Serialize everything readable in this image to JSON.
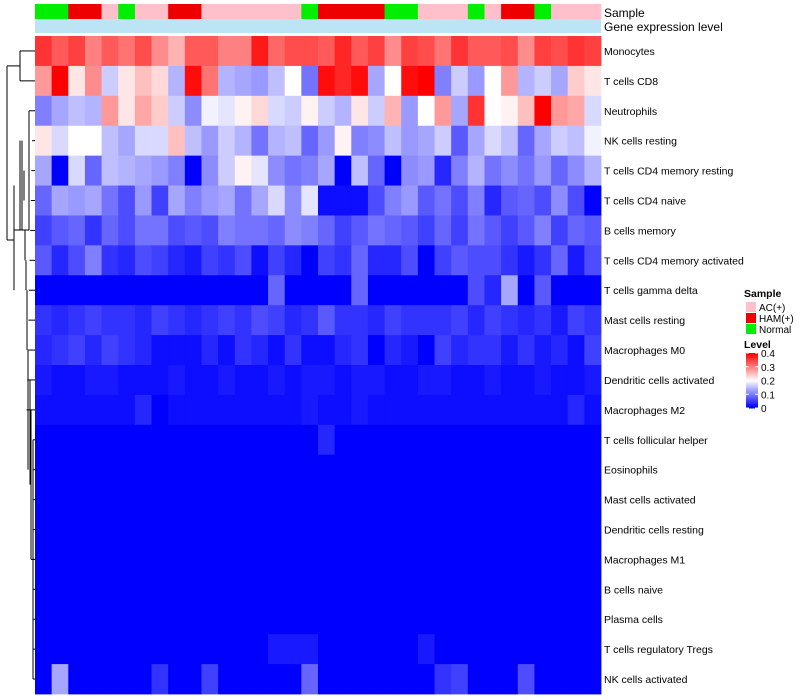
{
  "chart_data": {
    "type": "heatmap",
    "annotation_labels": {
      "sample": "Sample",
      "gene": "Gene expression level"
    },
    "rows": [
      "Monocytes",
      "T cells CD8",
      "Neutrophils",
      "NK cells resting",
      "T cells CD4 memory resting",
      "T cells CD4 naive",
      "B cells memory",
      "T cells CD4 memory activated",
      "T cells gamma delta",
      "Mast cells resting",
      "Macrophages M0",
      "Dendritic cells activated",
      "Macrophages M2",
      "T cells follicular helper",
      "Eosinophils",
      "Mast cells activated",
      "Dendritic cells resting",
      "Macrophages M1",
      "B cells naive",
      "Plasma cells",
      "T cells regulatory  Tregs",
      "NK cells activated"
    ],
    "sample_groups": [
      "Normal",
      "Normal",
      "HAM(+)",
      "HAM(+)",
      "AC(+)",
      "Normal",
      "AC(+)",
      "AC(+)",
      "HAM(+)",
      "HAM(+)",
      "AC(+)",
      "AC(+)",
      "AC(+)",
      "AC(+)",
      "AC(+)",
      "AC(+)",
      "Normal",
      "HAM(+)",
      "HAM(+)",
      "HAM(+)",
      "HAM(+)",
      "Normal",
      "Normal",
      "AC(+)",
      "AC(+)",
      "AC(+)",
      "Normal",
      "AC(+)",
      "HAM(+)",
      "HAM(+)",
      "Normal",
      "AC(+)",
      "AC(+)",
      "AC(+)"
    ],
    "matrix": [
      [
        0.36,
        0.33,
        0.35,
        0.3,
        0.33,
        0.31,
        0.34,
        0.29,
        0.26,
        0.33,
        0.33,
        0.3,
        0.3,
        0.38,
        0.32,
        0.34,
        0.34,
        0.33,
        0.37,
        0.33,
        0.35,
        0.29,
        0.35,
        0.34,
        0.31,
        0.36,
        0.33,
        0.33,
        0.34,
        0.29,
        0.35,
        0.34,
        0.36,
        0.35
      ],
      [
        0.28,
        0.4,
        0.22,
        0.29,
        0.16,
        0.22,
        0.25,
        0.23,
        0.14,
        0.39,
        0.31,
        0.14,
        0.13,
        0.12,
        0.15,
        0.2,
        0.09,
        0.39,
        0.37,
        0.39,
        0.13,
        0.2,
        0.39,
        0.4,
        0.1,
        0.16,
        0.12,
        0.2,
        0.28,
        0.14,
        0.16,
        0.13,
        0.24,
        0.22
      ],
      [
        0.1,
        0.13,
        0.15,
        0.14,
        0.28,
        0.22,
        0.27,
        0.24,
        0.16,
        0.11,
        0.19,
        0.18,
        0.21,
        0.23,
        0.17,
        0.16,
        0.21,
        0.16,
        0.14,
        0.22,
        0.16,
        0.26,
        0.12,
        0.2,
        0.28,
        0.13,
        0.36,
        0.2,
        0.21,
        0.25,
        0.4,
        0.28,
        0.27,
        0.17
      ],
      [
        0.22,
        0.17,
        0.2,
        0.2,
        0.15,
        0.13,
        0.17,
        0.17,
        0.25,
        0.15,
        0.12,
        0.16,
        0.14,
        0.09,
        0.14,
        0.15,
        0.08,
        0.12,
        0.21,
        0.1,
        0.11,
        0.15,
        0.12,
        0.13,
        0.16,
        0.07,
        0.13,
        0.17,
        0.15,
        0.08,
        0.13,
        0.16,
        0.15,
        0.19
      ],
      [
        0.13,
        0.0,
        0.17,
        0.08,
        0.15,
        0.14,
        0.13,
        0.12,
        0.1,
        0.0,
        0.11,
        0.16,
        0.21,
        0.18,
        0.11,
        0.09,
        0.1,
        0.13,
        0.0,
        0.15,
        0.08,
        0.0,
        0.11,
        0.12,
        0.03,
        0.1,
        0.14,
        0.09,
        0.11,
        0.09,
        0.12,
        0.08,
        0.11,
        0.14
      ],
      [
        0.08,
        0.13,
        0.12,
        0.13,
        0.09,
        0.06,
        0.12,
        0.05,
        0.13,
        0.1,
        0.12,
        0.13,
        0.09,
        0.13,
        0.17,
        0.11,
        0.18,
        0.01,
        0.01,
        0.01,
        0.06,
        0.1,
        0.12,
        0.07,
        0.09,
        0.06,
        0.1,
        0.03,
        0.07,
        0.08,
        0.06,
        0.11,
        0.06,
        0.0
      ],
      [
        0.05,
        0.07,
        0.08,
        0.04,
        0.08,
        0.06,
        0.09,
        0.09,
        0.06,
        0.07,
        0.06,
        0.1,
        0.09,
        0.09,
        0.08,
        0.11,
        0.1,
        0.08,
        0.05,
        0.07,
        0.09,
        0.08,
        0.07,
        0.05,
        0.08,
        0.05,
        0.09,
        0.07,
        0.05,
        0.07,
        0.1,
        0.05,
        0.08,
        0.07
      ],
      [
        0.07,
        0.03,
        0.06,
        0.1,
        0.04,
        0.03,
        0.06,
        0.05,
        0.03,
        0.02,
        0.05,
        0.04,
        0.06,
        0.01,
        0.05,
        0.03,
        0.0,
        0.05,
        0.04,
        0.08,
        0.03,
        0.03,
        0.06,
        0.0,
        0.05,
        0.07,
        0.06,
        0.06,
        0.04,
        0.02,
        0.04,
        0.08,
        0.02,
        0.06
      ],
      [
        0.0,
        0.0,
        0.0,
        0.0,
        0.0,
        0.0,
        0.0,
        0.0,
        0.0,
        0.0,
        0.0,
        0.0,
        0.0,
        0.0,
        0.08,
        0.0,
        0.0,
        0.0,
        0.0,
        0.08,
        0.0,
        0.0,
        0.0,
        0.0,
        0.0,
        0.0,
        0.06,
        0.03,
        0.13,
        0.0,
        0.07,
        0.0,
        0.0,
        0.0
      ],
      [
        0.04,
        0.03,
        0.04,
        0.05,
        0.04,
        0.04,
        0.03,
        0.05,
        0.04,
        0.03,
        0.04,
        0.05,
        0.04,
        0.06,
        0.05,
        0.03,
        0.04,
        0.07,
        0.04,
        0.04,
        0.03,
        0.05,
        0.04,
        0.04,
        0.04,
        0.05,
        0.03,
        0.05,
        0.04,
        0.03,
        0.04,
        0.02,
        0.05,
        0.04
      ],
      [
        0.03,
        0.04,
        0.05,
        0.03,
        0.05,
        0.04,
        0.03,
        0.01,
        0.01,
        0.01,
        0.03,
        0.01,
        0.04,
        0.03,
        0.01,
        0.04,
        0.01,
        0.01,
        0.03,
        0.04,
        0.0,
        0.03,
        0.02,
        0.0,
        0.05,
        0.03,
        0.04,
        0.04,
        0.02,
        0.04,
        0.02,
        0.03,
        0.01,
        0.05
      ],
      [
        0.02,
        0.01,
        0.01,
        0.02,
        0.02,
        0.01,
        0.01,
        0.01,
        0.02,
        0.01,
        0.01,
        0.02,
        0.01,
        0.01,
        0.02,
        0.01,
        0.02,
        0.02,
        0.01,
        0.02,
        0.02,
        0.01,
        0.01,
        0.02,
        0.02,
        0.01,
        0.01,
        0.02,
        0.01,
        0.01,
        0.02,
        0.01,
        0.01,
        0.02
      ],
      [
        0.01,
        0.01,
        0.01,
        0.01,
        0.01,
        0.01,
        0.03,
        0.0,
        0.01,
        0.01,
        0.01,
        0.01,
        0.01,
        0.01,
        0.01,
        0.01,
        0.02,
        0.01,
        0.01,
        0.02,
        0.01,
        0.01,
        0.01,
        0.01,
        0.01,
        0.01,
        0.01,
        0.01,
        0.01,
        0.01,
        0.01,
        0.01,
        0.03,
        0.01
      ],
      [
        0.0,
        0.0,
        0.0,
        0.0,
        0.0,
        0.0,
        0.0,
        0.0,
        0.0,
        0.0,
        0.0,
        0.0,
        0.0,
        0.0,
        0.0,
        0.0,
        0.0,
        0.03,
        0.0,
        0.0,
        0.0,
        0.0,
        0.0,
        0.0,
        0.0,
        0.0,
        0.0,
        0.0,
        0.0,
        0.0,
        0.0,
        0.0,
        0.0,
        0.0
      ],
      [
        0.0,
        0.0,
        0.0,
        0.0,
        0.0,
        0.0,
        0.0,
        0.0,
        0.0,
        0.0,
        0.0,
        0.0,
        0.0,
        0.0,
        0.0,
        0.0,
        0.0,
        0.0,
        0.0,
        0.0,
        0.0,
        0.0,
        0.0,
        0.0,
        0.0,
        0.0,
        0.0,
        0.0,
        0.0,
        0.0,
        0.0,
        0.0,
        0.0,
        0.0
      ],
      [
        0.0,
        0.0,
        0.0,
        0.0,
        0.0,
        0.0,
        0.0,
        0.0,
        0.0,
        0.0,
        0.0,
        0.0,
        0.0,
        0.0,
        0.0,
        0.0,
        0.0,
        0.0,
        0.0,
        0.0,
        0.0,
        0.0,
        0.0,
        0.0,
        0.0,
        0.0,
        0.0,
        0.0,
        0.0,
        0.0,
        0.0,
        0.0,
        0.0,
        0.0
      ],
      [
        0.0,
        0.0,
        0.0,
        0.0,
        0.0,
        0.0,
        0.0,
        0.0,
        0.0,
        0.0,
        0.0,
        0.0,
        0.0,
        0.0,
        0.0,
        0.0,
        0.0,
        0.0,
        0.0,
        0.0,
        0.0,
        0.0,
        0.0,
        0.0,
        0.0,
        0.0,
        0.0,
        0.0,
        0.0,
        0.0,
        0.0,
        0.0,
        0.0,
        0.0
      ],
      [
        0.0,
        0.0,
        0.0,
        0.0,
        0.0,
        0.0,
        0.0,
        0.0,
        0.0,
        0.0,
        0.0,
        0.0,
        0.0,
        0.0,
        0.0,
        0.0,
        0.0,
        0.0,
        0.0,
        0.0,
        0.0,
        0.0,
        0.0,
        0.0,
        0.0,
        0.0,
        0.0,
        0.0,
        0.0,
        0.0,
        0.0,
        0.0,
        0.0,
        0.0
      ],
      [
        0.0,
        0.0,
        0.0,
        0.0,
        0.0,
        0.0,
        0.0,
        0.0,
        0.0,
        0.0,
        0.0,
        0.0,
        0.0,
        0.0,
        0.0,
        0.0,
        0.0,
        0.0,
        0.0,
        0.0,
        0.0,
        0.0,
        0.0,
        0.0,
        0.0,
        0.0,
        0.0,
        0.0,
        0.0,
        0.0,
        0.0,
        0.0,
        0.0,
        0.0
      ],
      [
        0.0,
        0.0,
        0.0,
        0.0,
        0.0,
        0.0,
        0.0,
        0.0,
        0.0,
        0.0,
        0.0,
        0.0,
        0.0,
        0.0,
        0.0,
        0.0,
        0.0,
        0.0,
        0.0,
        0.0,
        0.0,
        0.0,
        0.0,
        0.0,
        0.0,
        0.0,
        0.0,
        0.0,
        0.0,
        0.0,
        0.0,
        0.0,
        0.0,
        0.0
      ],
      [
        0.0,
        0.0,
        0.0,
        0.0,
        0.0,
        0.0,
        0.0,
        0.0,
        0.0,
        0.0,
        0.0,
        0.0,
        0.0,
        0.0,
        0.02,
        0.02,
        0.02,
        0.0,
        0.0,
        0.0,
        0.0,
        0.0,
        0.0,
        0.02,
        0.0,
        0.0,
        0.0,
        0.0,
        0.0,
        0.0,
        0.0,
        0.0,
        0.0,
        0.0
      ],
      [
        0.0,
        0.13,
        0.0,
        0.0,
        0.0,
        0.0,
        0.0,
        0.04,
        0.0,
        0.0,
        0.05,
        0.0,
        0.0,
        0.0,
        0.0,
        0.0,
        0.08,
        0.0,
        0.0,
        0.0,
        0.0,
        0.0,
        0.0,
        0.0,
        0.04,
        0.05,
        0.0,
        0.0,
        0.0,
        0.06,
        0.0,
        0.0,
        0.0,
        0.0
      ]
    ],
    "legend": {
      "sample_title": "Sample",
      "groups": [
        {
          "name": "AC(+)",
          "color": "#ffc0cb"
        },
        {
          "name": "HAM(+)",
          "color": "#ee0000"
        },
        {
          "name": "Normal",
          "color": "#00ee00"
        }
      ],
      "level_title": "Level",
      "ticks": [
        0.4,
        0.3,
        0.2,
        0.1,
        0
      ],
      "range": [
        0,
        0.4
      ]
    },
    "colors": {
      "low": "#0000ff",
      "mid": "#ffffff",
      "high": "#ff0000",
      "gene_bar": "#bde4f5"
    }
  }
}
